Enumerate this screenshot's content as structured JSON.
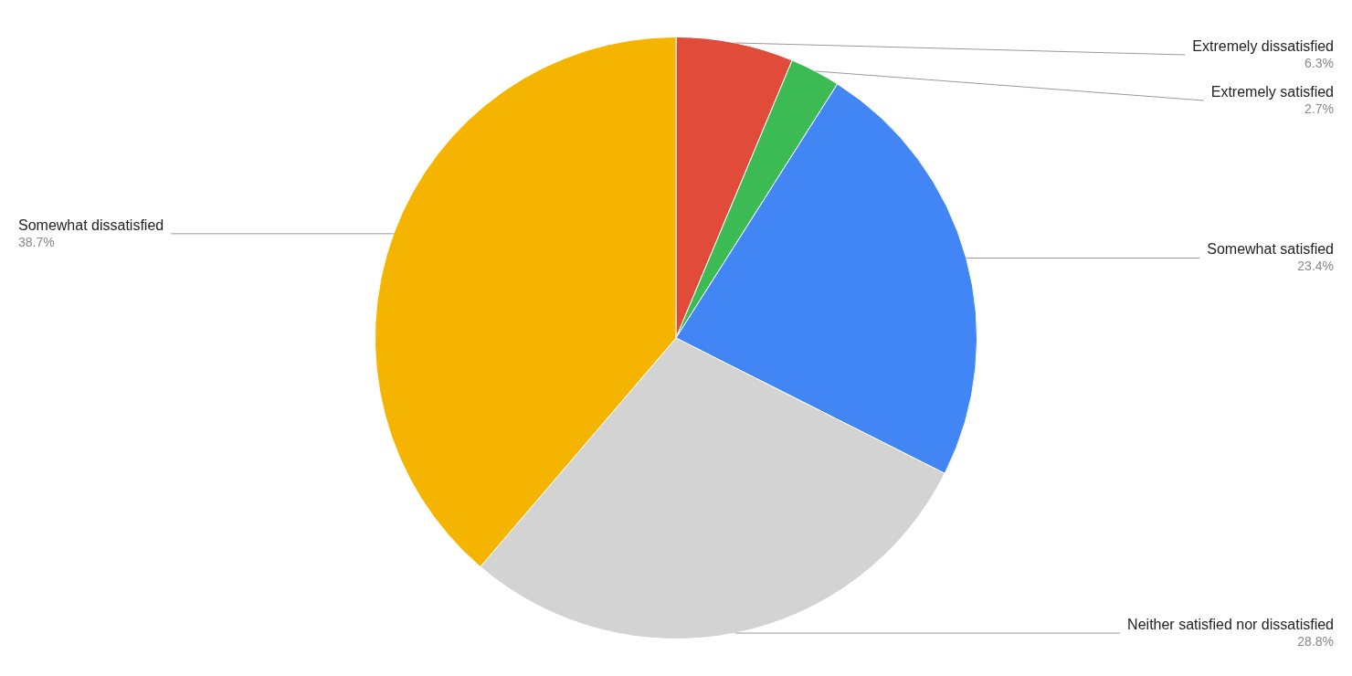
{
  "chart_data": {
    "type": "pie",
    "categories": [
      "Extremely dissatisfied",
      "Extremely satisfied",
      "Somewhat satisfied",
      "Neither satisfied nor dissatisfied",
      "Somewhat dissatisfied"
    ],
    "values": [
      6.3,
      2.7,
      23.4,
      28.8,
      38.7
    ],
    "value_labels": [
      "6.3%",
      "2.7%",
      "23.4%",
      "28.8%",
      "38.7%"
    ],
    "colors": [
      "#e04b3a",
      "#3cba54",
      "#4285f4",
      "#d3d3d3",
      "#f4b400"
    ],
    "data_labels": true
  }
}
